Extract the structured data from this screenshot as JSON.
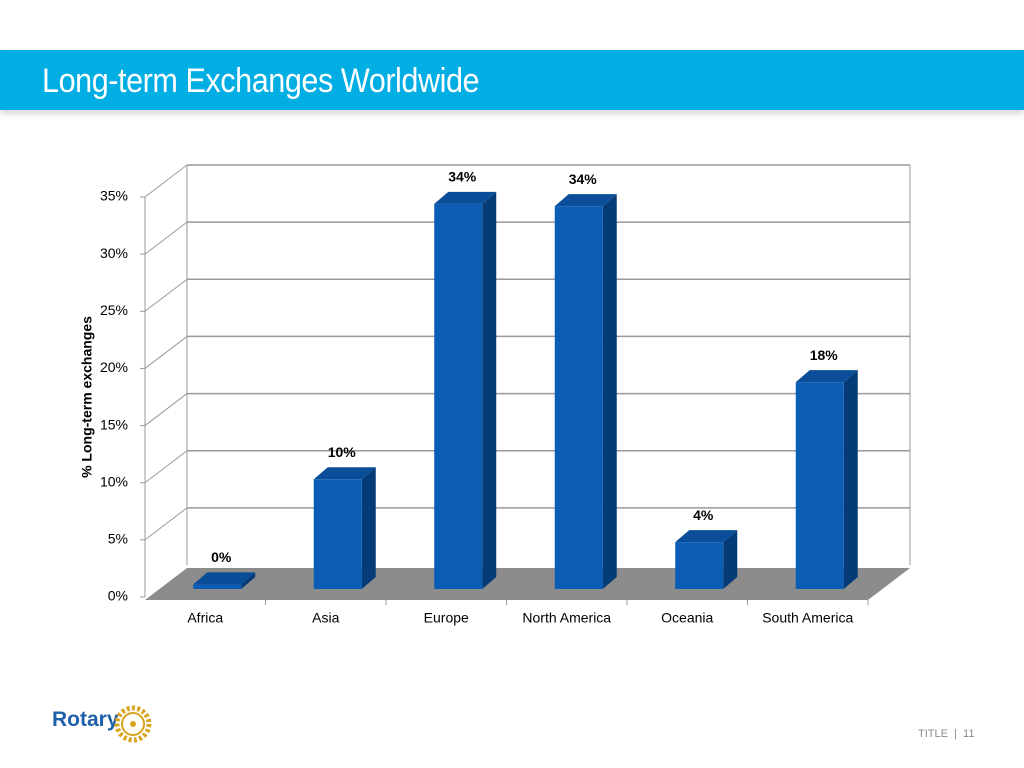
{
  "slide": {
    "logo": "Rotary",
    "footer": "TITLE",
    "page": "11"
  },
  "chart_data": {
    "type": "bar3d",
    "title": "Long-term Exchanges Worldwide",
    "y_label": "% Long-term exchanges",
    "categories": [
      "Africa",
      "Asia",
      "Europe",
      "North America",
      "Oceania",
      "South America"
    ],
    "values": [
      0.4,
      9.6,
      33.7,
      33.5,
      4.1,
      18.1
    ],
    "value_labels": [
      "0%",
      "10%",
      "34%",
      "34%",
      "4%",
      "18%"
    ],
    "color": "#0a5cb4",
    "ylim": [
      0,
      35
    ],
    "yticks": [
      {
        "value": 0,
        "label": "0%"
      },
      {
        "value": 5,
        "label": "5%"
      },
      {
        "value": 10,
        "label": "10%"
      },
      {
        "value": 15,
        "label": "15%"
      },
      {
        "value": 20,
        "label": "20%"
      },
      {
        "value": 25,
        "label": "25%"
      },
      {
        "value": 30,
        "label": "30%"
      },
      {
        "value": 35,
        "label": "35%"
      }
    ],
    "grid": true
  }
}
